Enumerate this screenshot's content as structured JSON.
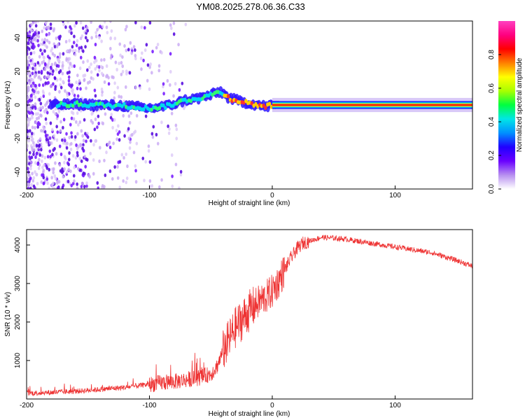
{
  "title": "YM08.2025.278.06.36.C33",
  "chart_data": [
    {
      "type": "heatmap",
      "xlabel": "Height of straight line (km)",
      "ylabel": "Frequency (Hz)",
      "xlim": [
        -200,
        163
      ],
      "ylim": [
        -50,
        50
      ],
      "xticks": [
        -200,
        -100,
        0,
        100
      ],
      "xtick_labels": [
        "-200",
        "-100",
        "0",
        "100"
      ],
      "yticks": [
        -40,
        -20,
        0,
        20,
        40
      ],
      "ytick_labels": [
        "-40",
        "-20",
        "0",
        "20",
        "40"
      ],
      "ridge": {
        "x": [
          -175,
          -160,
          -140,
          -120,
          -100,
          -85,
          -70,
          -60,
          -50,
          -42,
          -35,
          -25,
          -15,
          -5,
          0,
          163
        ],
        "y": [
          0,
          0.5,
          0,
          -0.5,
          -2,
          -0.5,
          3,
          4,
          6,
          8,
          4,
          2,
          0.5,
          -1,
          0,
          0
        ]
      },
      "colorbar": {
        "label": "Normalized spectral amplitude",
        "range": [
          0,
          1
        ],
        "ticks": [
          0.0,
          0.2,
          0.4,
          0.6,
          0.8
        ],
        "tick_labels": [
          "0.0",
          "0.2",
          "0.4",
          "0.6",
          "0.8"
        ],
        "colors": [
          "#ffffff",
          "#b78ff0",
          "#6a00ff",
          "#2000ff",
          "#0090ff",
          "#00e6e6",
          "#00ff40",
          "#a8ff00",
          "#ffff00",
          "#ff8000",
          "#ff0000",
          "#ff0080",
          "#ff40c0"
        ]
      }
    },
    {
      "type": "line",
      "xlabel": "Height of straight line (km)",
      "ylabel": "SNR (10 * v/v)",
      "xlim": [
        -200,
        163
      ],
      "ylim": [
        0,
        4400
      ],
      "xticks": [
        -200,
        -100,
        0,
        100
      ],
      "xtick_labels": [
        "-200",
        "-100",
        "0",
        "100"
      ],
      "yticks": [
        1000,
        2000,
        3000,
        4000
      ],
      "ytick_labels": [
        "1000",
        "2000",
        "3000",
        "4000"
      ],
      "series": [
        {
          "name": "SNR",
          "color": "#ee3333",
          "x": [
            -200,
            -180,
            -160,
            -140,
            -120,
            -100,
            -90,
            -80,
            -70,
            -60,
            -50,
            -45,
            -40,
            -35,
            -30,
            -25,
            -20,
            -15,
            -10,
            -5,
            0,
            5,
            10,
            15,
            20,
            25,
            30,
            40,
            50,
            60,
            70,
            80,
            90,
            100,
            110,
            120,
            130,
            140,
            150,
            163
          ],
          "y": [
            150,
            170,
            200,
            250,
            300,
            380,
            420,
            450,
            500,
            550,
            650,
            850,
            1250,
            1550,
            1850,
            2050,
            2250,
            2400,
            2550,
            2650,
            2800,
            3050,
            3350,
            3650,
            3900,
            4050,
            4100,
            4200,
            4180,
            4150,
            4100,
            4050,
            4000,
            3950,
            3900,
            3850,
            3800,
            3700,
            3600,
            3450
          ]
        }
      ]
    }
  ]
}
